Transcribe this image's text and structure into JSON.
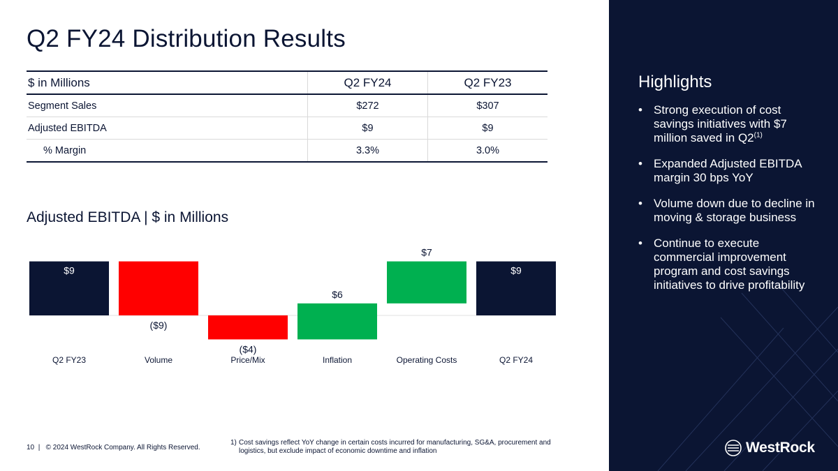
{
  "page": {
    "title": "Q2 FY24 Distribution Results",
    "chart_heading": "Adjusted EBITDA | $ in Millions",
    "page_number": "10",
    "separator": "|",
    "copyright": "© 2024 WestRock Company. All Rights Reserved.",
    "footnote_marker": "1)",
    "footnote_text": "Cost savings reflect YoY change in certain costs incurred for manufacturing, SG&A, procurement and logistics, but exclude impact of economic downtime and inflation"
  },
  "table": {
    "header_label": "$ in Millions",
    "columns": [
      "Q2 FY24",
      "Q2 FY23"
    ],
    "rows": [
      {
        "label": "Segment Sales",
        "values": [
          "$272",
          "$307"
        ]
      },
      {
        "label": "Adjusted EBITDA",
        "values": [
          "$9",
          "$9"
        ]
      },
      {
        "label": "% Margin",
        "values": [
          "3.3%",
          "3.0%"
        ]
      }
    ]
  },
  "highlights": {
    "title": "Highlights",
    "bullet": "•",
    "items": [
      {
        "text": "Strong execution of cost savings initiatives with $7 million saved in Q2",
        "sup": "(1)"
      },
      {
        "text": "Expanded Adjusted EBITDA margin 30 bps YoY",
        "sup": ""
      },
      {
        "text": "Volume down due to decline in moving & storage business",
        "sup": ""
      },
      {
        "text": "Continue to execute commercial improvement program and cost savings initiatives to drive profitability",
        "sup": ""
      }
    ]
  },
  "brand": {
    "logo_text": "WestRock",
    "navy": "#0b1533",
    "red": "#ff0000",
    "green": "#00b050"
  },
  "chart_data": {
    "type": "waterfall",
    "title": "Adjusted EBITDA | $ in Millions",
    "unit": "$M",
    "categories": [
      "Q2 FY23",
      "Volume",
      "Price/Mix",
      "Inflation",
      "Operating Costs",
      "Q2 FY24"
    ],
    "values": [
      9,
      -9,
      -4,
      6,
      7,
      9
    ],
    "labels": [
      "$9",
      "($9)",
      "($4)",
      "$6",
      "$7",
      "$9"
    ],
    "kinds": [
      "total",
      "delta",
      "delta",
      "delta",
      "delta",
      "total"
    ],
    "colors": [
      "#0b1533",
      "#ff0000",
      "#ff0000",
      "#00b050",
      "#00b050",
      "#0b1533"
    ]
  }
}
